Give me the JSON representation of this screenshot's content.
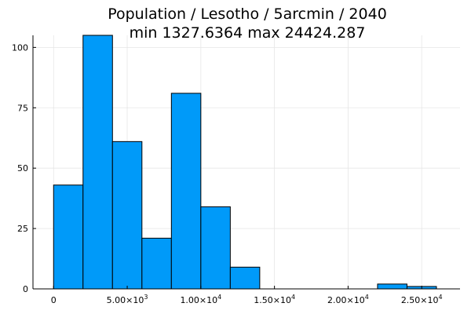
{
  "chart_data": {
    "type": "bar",
    "title": "Population / Lesotho / 5arcmin / 2040",
    "subtitle": "min 1327.6364  max 24424.287",
    "xlabel": "",
    "ylabel": "",
    "bin_edges": [
      0,
      2000,
      4000,
      6000,
      8000,
      10000,
      12000,
      14000,
      16000,
      18000,
      20000,
      22000,
      24000,
      26000
    ],
    "values": [
      43,
      105,
      61,
      21,
      81,
      34,
      9,
      0,
      0,
      0,
      0,
      2,
      1
    ],
    "xlim": [
      -1400,
      27600
    ],
    "ylim": [
      0,
      105
    ],
    "x_ticks": [
      {
        "value": 0,
        "label": "0"
      },
      {
        "value": 5000,
        "label": "5.00×10",
        "exp": "3"
      },
      {
        "value": 10000,
        "label": "1.00×10",
        "exp": "4"
      },
      {
        "value": 15000,
        "label": "1.50×10",
        "exp": "4"
      },
      {
        "value": 20000,
        "label": "2.00×10",
        "exp": "4"
      },
      {
        "value": 25000,
        "label": "2.50×10",
        "exp": "4"
      }
    ],
    "y_ticks": [
      {
        "value": 0,
        "label": "0"
      },
      {
        "value": 25,
        "label": "25"
      },
      {
        "value": 50,
        "label": "50"
      },
      {
        "value": 75,
        "label": "75"
      },
      {
        "value": 100,
        "label": "100"
      }
    ],
    "grid": true,
    "legend": "none",
    "bar_color": "#009af9"
  }
}
